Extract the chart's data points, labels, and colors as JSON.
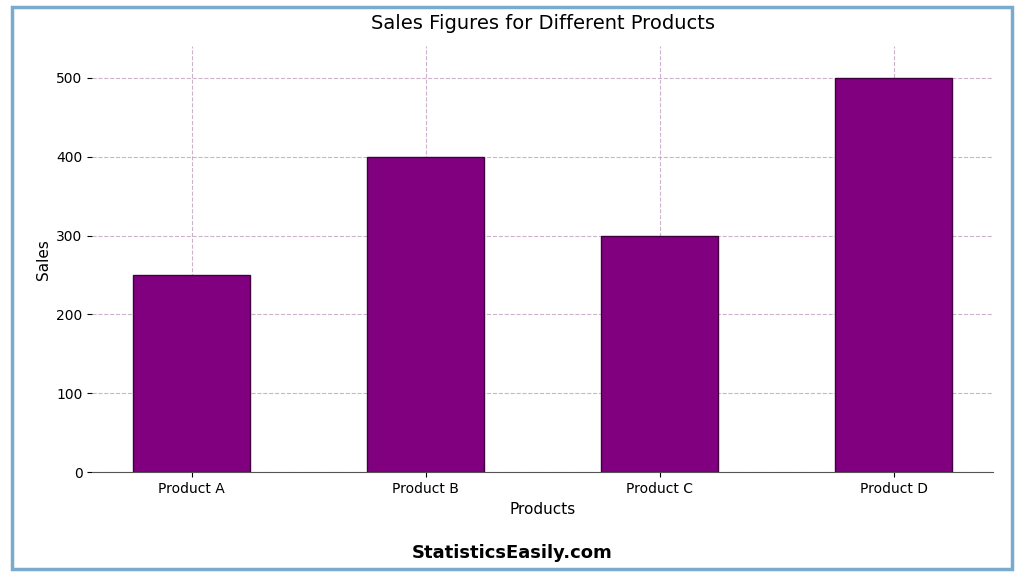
{
  "title": "Sales Figures for Different Products",
  "xlabel": "Products",
  "ylabel": "Sales",
  "categories": [
    "Product A",
    "Product B",
    "Product C",
    "Product D"
  ],
  "values": [
    250,
    400,
    300,
    500
  ],
  "bar_color": "#800080",
  "bar_edgecolor": "#400040",
  "ylim": [
    0,
    540
  ],
  "yticks": [
    0,
    100,
    200,
    300,
    400,
    500
  ],
  "grid_color": "#c0a0c0",
  "grid_linestyle": "--",
  "grid_alpha": 0.8,
  "title_fontsize": 14,
  "axis_label_fontsize": 11,
  "tick_fontsize": 10,
  "footer_text": "StatisticsEasily.com",
  "footer_fontsize": 13,
  "background_color": "#ffffff",
  "border_color": "#7aaacc",
  "fig_width": 10.24,
  "fig_height": 5.76,
  "bar_width": 0.5
}
